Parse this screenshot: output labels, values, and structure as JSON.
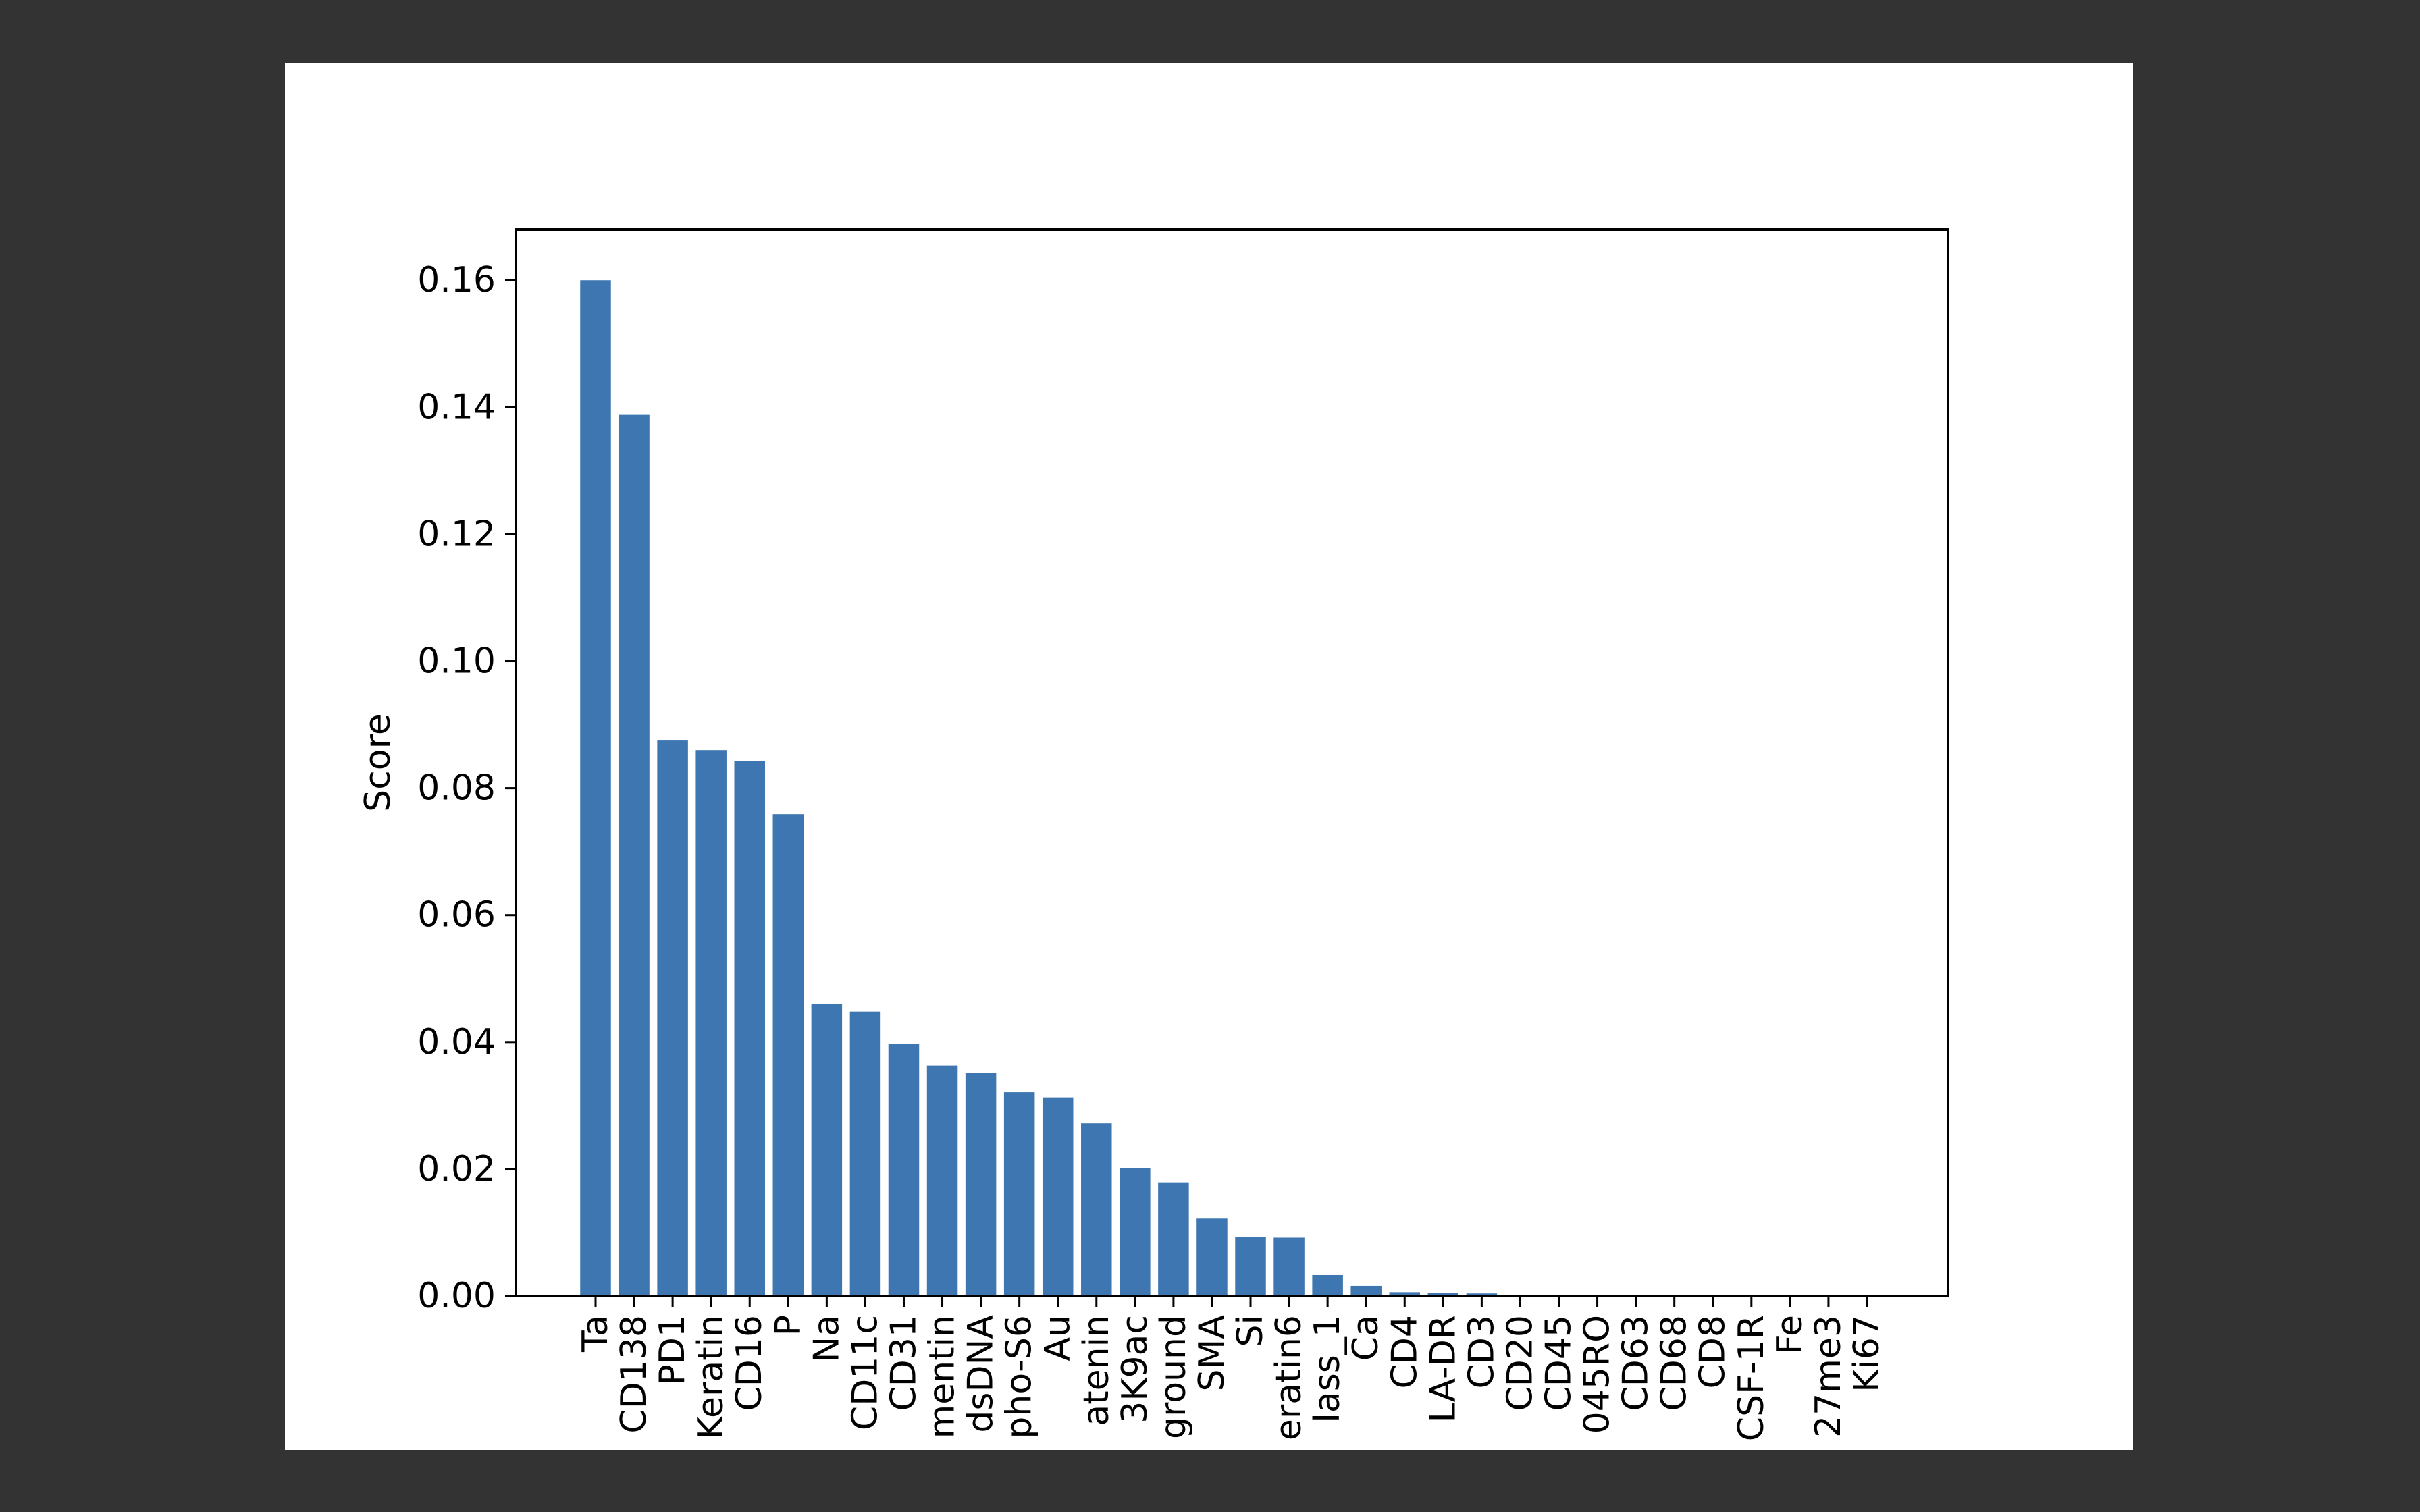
{
  "figure": {
    "background": "#ffffff",
    "page_background": "#333333"
  },
  "chart_data": {
    "type": "bar",
    "title": "",
    "xlabel": "",
    "ylabel": "Score",
    "ylim": [
      0,
      0.168
    ],
    "yticks": [
      0.0,
      0.02,
      0.04,
      0.06,
      0.08,
      0.1,
      0.12,
      0.14,
      0.16
    ],
    "ytick_labels": [
      "0.00",
      "0.02",
      "0.04",
      "0.06",
      "0.08",
      "0.10",
      "0.12",
      "0.14",
      "0.16"
    ],
    "grid": false,
    "bar_color": "#3d76b0",
    "categories": [
      "Ta",
      "CD138",
      "PD1",
      "Keratin",
      "CD16",
      "P",
      "Na",
      "CD11c",
      "CD31",
      "mentin",
      "dsDNA",
      "pho-S6",
      "Au",
      "atenin",
      "3K9ac",
      "ground",
      "SMA",
      "Si",
      "eratin6",
      "lass_1",
      "Ca",
      "CD4",
      "LA-DR",
      "CD3",
      "CD20",
      "CD45",
      "045RO",
      "CD63",
      "CD68",
      "CD8",
      "CSF-1R",
      "Fe",
      "27me3",
      "Ki67"
    ],
    "values": [
      0.16,
      0.1388,
      0.0875,
      0.086,
      0.0843,
      0.0759,
      0.046,
      0.0448,
      0.0397,
      0.0363,
      0.0351,
      0.0321,
      0.0313,
      0.0272,
      0.0201,
      0.0179,
      0.0122,
      0.0093,
      0.0092,
      0.0033,
      0.0016,
      0.0006,
      0.0005,
      0.0004,
      0.0001,
      0.0001,
      0.0001,
      0.0001,
      0.0001,
      0.0001,
      0.0001,
      0.0001,
      0.0001,
      0.0001
    ]
  }
}
